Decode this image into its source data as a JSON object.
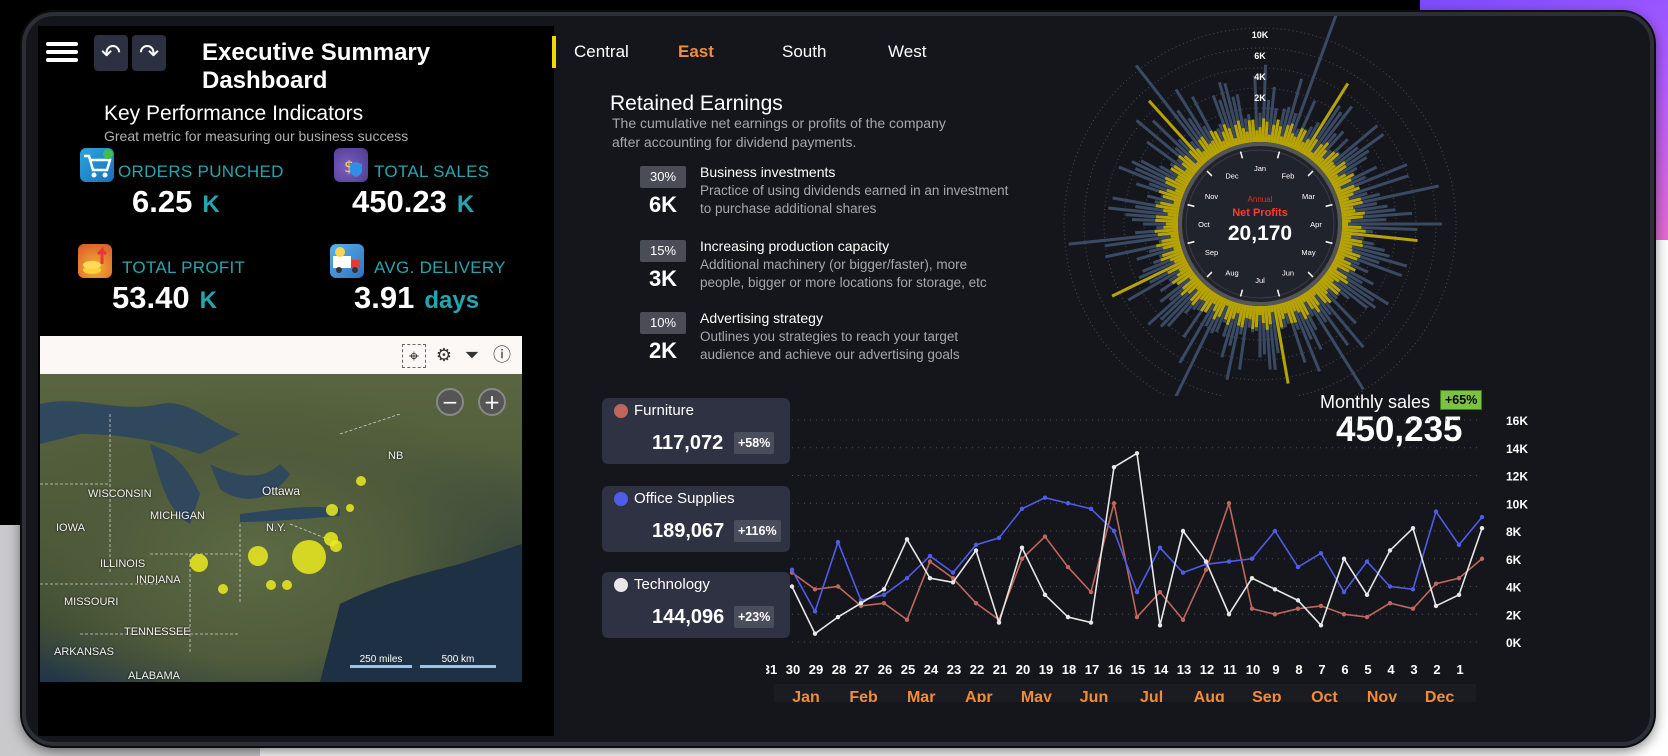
{
  "header": {
    "title": "Executive Summary Dashboard"
  },
  "kpi": {
    "heading": "Key Performance Indicators",
    "subheading": "Great metric for measuring our business success",
    "items": [
      {
        "label": "ORDERS PUNCHED",
        "value": "6.25",
        "unit": "K",
        "icon": "cart-icon"
      },
      {
        "label": "TOTAL SALES",
        "value": "450.23",
        "unit": "K",
        "icon": "money-bag-icon"
      },
      {
        "label": "TOTAL PROFIT",
        "value": "53.40",
        "unit": "K",
        "icon": "profit-coins-icon"
      },
      {
        "label": "AVG. DELIVERY",
        "value": "3.91",
        "unit": "days",
        "icon": "delivery-truck-icon"
      }
    ]
  },
  "map": {
    "labels": [
      "NB",
      "Ottawa",
      "WISCONSIN",
      "MICHIGAN",
      "N.Y.",
      "IOWA",
      "ILLINOIS",
      "INDIANA",
      "MISSOURI",
      "TENNESSEE",
      "ARKANSAS",
      "ALABAMA"
    ],
    "scale_miles": "250 miles",
    "scale_km": "500 km",
    "zoom_out": "−",
    "zoom_in": "+"
  },
  "regions": {
    "tabs": [
      "Central",
      "East",
      "South",
      "West"
    ],
    "active": "East"
  },
  "retained_earnings": {
    "title": "Retained Earnings",
    "description": "The cumulative net earnings or profits  of the company after accounting for dividend payments.",
    "items": [
      {
        "pct": "30%",
        "amount": "6K",
        "heading": "Business investments",
        "text": "Practice of using dividends earned in an investment to purchase additional shares"
      },
      {
        "pct": "15%",
        "amount": "3K",
        "heading": "Increasing production capacity",
        "text": "Additional machinery (or bigger/faster), more people, bigger or more locations for storage, etc"
      },
      {
        "pct": "10%",
        "amount": "2K",
        "heading": "Advertising strategy",
        "text": "Outlines you strategies to reach your target audience and achieve our advertising goals"
      }
    ]
  },
  "radial": {
    "scale_labels": [
      "10K",
      "6K",
      "4K",
      "2K"
    ],
    "months": [
      "Jan",
      "Feb",
      "Mar",
      "Apr",
      "May",
      "Jun",
      "Jul",
      "Aug",
      "Sep",
      "Oct",
      "Nov",
      "Dec"
    ],
    "caption_small": "Annual",
    "caption": "Net Profits",
    "value": "20,170"
  },
  "categories": [
    {
      "name": "Furniture",
      "value": "117,072",
      "change": "+58%",
      "color": "#c0675d"
    },
    {
      "name": "Office Supplies",
      "value": "189,067",
      "change": "+116%",
      "color": "#4f5ce8"
    },
    {
      "name": "Technology",
      "value": "144,096",
      "change": "+23%",
      "color": "#e8e8e8"
    }
  ],
  "monthly_sales": {
    "label": "Monthly sales",
    "change": "+65%",
    "value": "450,235"
  },
  "chart_data": {
    "type": "line",
    "x": [
      "31",
      "30",
      "29",
      "28",
      "27",
      "26",
      "25",
      "24",
      "23",
      "22",
      "21",
      "20",
      "19",
      "18",
      "17",
      "16",
      "15",
      "14",
      "13",
      "12",
      "11",
      "10",
      "9",
      "8",
      "7",
      "6",
      "5",
      "4",
      "3",
      "2",
      "1"
    ],
    "month_labels": [
      "Jan",
      "Feb",
      "Mar",
      "Apr",
      "May",
      "Jun",
      "Jul",
      "Aug",
      "Sep",
      "Oct",
      "Nov",
      "Dec"
    ],
    "yticks": [
      "16K",
      "14K",
      "12K",
      "10K",
      "8K",
      "6K",
      "4K",
      "2K",
      "0K"
    ],
    "ylim": [
      0,
      16000
    ],
    "grid": true,
    "series": [
      {
        "name": "Furniture",
        "color": "#c0675d",
        "values": [
          5000,
          3800,
          4000,
          2600,
          2800,
          1600,
          5800,
          4600,
          2800,
          1600,
          6000,
          7600,
          5400,
          3600,
          10000,
          1800,
          3600,
          1600,
          5200,
          10000,
          2400,
          2000,
          2400,
          2600,
          2000,
          1800,
          2800,
          2400,
          4200,
          4600,
          6000
        ]
      },
      {
        "name": "Office Supplies",
        "color": "#4f5ce8",
        "values": [
          5200,
          2200,
          7200,
          3000,
          3400,
          4600,
          6200,
          5000,
          7000,
          7500,
          9600,
          10400,
          10000,
          9600,
          8000,
          3600,
          6800,
          5000,
          5600,
          5800,
          6000,
          8000,
          5400,
          6400,
          3600,
          5800,
          4000,
          3800,
          9400,
          7000,
          9000
        ]
      },
      {
        "name": "Technology",
        "color": "#e8e8e8",
        "values": [
          4000,
          600,
          1800,
          2800,
          3800,
          7400,
          4600,
          4300,
          6600,
          1400,
          6800,
          3400,
          1800,
          1400,
          12600,
          13600,
          1200,
          8000,
          5800,
          2000,
          4600,
          3800,
          3000,
          1200,
          6000,
          3400,
          6600,
          8200,
          2600,
          3400,
          8200
        ]
      }
    ]
  }
}
